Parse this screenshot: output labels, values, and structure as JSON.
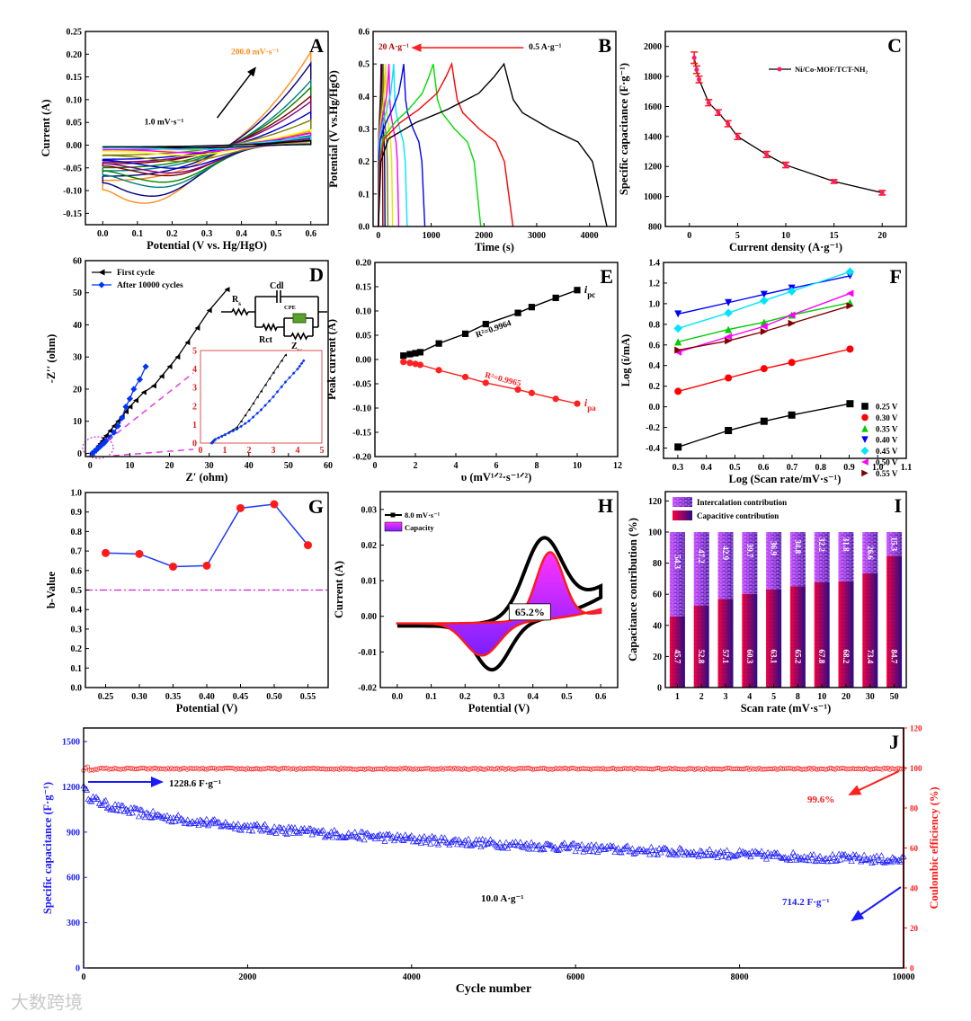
{
  "watermark": "大数跨境",
  "chart_data": [
    {
      "panel": "A",
      "letter": "A",
      "type": "line",
      "xlabel": "Potential (V vs. Hg/HgO)",
      "ylabel": "Current (A)",
      "xlim": [
        -0.05,
        0.65
      ],
      "ylim": [
        -0.175,
        0.25
      ],
      "x_ticks": [
        "0.0",
        "0.1",
        "0.2",
        "0.3",
        "0.4",
        "0.5",
        "0.6"
      ],
      "y_ticks": [
        "-0.15",
        "-0.10",
        "-0.05",
        "0.00",
        "0.05",
        "0.10",
        "0.15",
        "0.20",
        "0.25"
      ],
      "annotations": {
        "high": "200.0 mV·s⁻¹",
        "low": "1.0 mV·s⁻¹"
      },
      "series": [
        {
          "color": "#ff8c1a",
          "current_at_0_6V": 0.205,
          "cathodic_peak": -0.125,
          "cathodic_peak_potential": 0.15
        },
        {
          "color": "#000080",
          "current_at_0_6V": 0.18,
          "cathodic_peak": -0.11,
          "cathodic_peak_potential": 0.17
        },
        {
          "color": "#008080",
          "current_at_0_6V": 0.142,
          "cathodic_peak": -0.091,
          "cathodic_peak_potential": 0.19
        },
        {
          "color": "#008000",
          "current_at_0_6V": 0.127,
          "cathodic_peak": -0.08,
          "cathodic_peak_potential": 0.2
        },
        {
          "color": "#800000",
          "current_at_0_6V": 0.108,
          "cathodic_peak": -0.066,
          "cathodic_peak_potential": 0.21
        },
        {
          "color": "#800080",
          "current_at_0_6V": 0.096,
          "cathodic_peak": -0.06,
          "cathodic_peak_potential": 0.22
        },
        {
          "color": "#0000cc",
          "current_at_0_6V": 0.073,
          "cathodic_peak": -0.05,
          "cathodic_peak_potential": 0.23
        },
        {
          "color": "#808000",
          "current_at_0_6V": 0.055,
          "cathodic_peak": -0.035,
          "cathodic_peak_potential": 0.25
        },
        {
          "color": "#ffff00",
          "current_at_0_6V": 0.034,
          "cathodic_peak": -0.022,
          "cathodic_peak_potential": 0.26
        },
        {
          "color": "#ff00ff",
          "current_at_0_6V": 0.026,
          "cathodic_peak": -0.016,
          "cathodic_peak_potential": 0.27
        },
        {
          "color": "#00e5ff",
          "current_at_0_6V": 0.018,
          "cathodic_peak": -0.01,
          "cathodic_peak_potential": 0.28
        },
        {
          "color": "#000000",
          "current_at_0_6V": 0.01,
          "cathodic_peak": -0.006,
          "cathodic_peak_potential": 0.29
        }
      ]
    },
    {
      "panel": "B",
      "letter": "B",
      "type": "line",
      "xlabel": "Time (s)",
      "ylabel": "Potential (V vs.Hg/HgO)",
      "xlim": [
        -100,
        4500
      ],
      "ylim": [
        0,
        0.6
      ],
      "x_ticks": [
        "0",
        "1000",
        "2000",
        "3000",
        "4000"
      ],
      "y_ticks": [
        "0.0",
        "0.1",
        "0.2",
        "0.3",
        "0.4",
        "0.5",
        "0.6"
      ],
      "annotations": {
        "high": "20 A·g⁻¹",
        "low": "0.5 A·g⁻¹"
      },
      "series": [
        {
          "current_density": 0.5,
          "color": "#000000",
          "charge_end_s": 2380,
          "discharge_end_s": 4330
        },
        {
          "current_density": 1,
          "color": "#ff0000",
          "charge_end_s": 1390,
          "discharge_end_s": 2550
        },
        {
          "current_density": 2,
          "color": "#00dd00",
          "charge_end_s": 1040,
          "discharge_end_s": 1940
        },
        {
          "current_density": 3,
          "color": "#0000ff",
          "charge_end_s": 480,
          "discharge_end_s": 880
        },
        {
          "current_density": 4,
          "color": "#00e5ff",
          "charge_end_s": 290,
          "discharge_end_s": 545
        },
        {
          "current_density": 5,
          "color": "#ff00ff",
          "charge_end_s": 200,
          "discharge_end_s": 385
        },
        {
          "current_density": 8,
          "color": "#e6e600",
          "charge_end_s": 140,
          "discharge_end_s": 270
        },
        {
          "current_density": 10,
          "color": "#808000",
          "charge_end_s": 95,
          "discharge_end_s": 180
        },
        {
          "current_density": 15,
          "color": "#000080",
          "charge_end_s": 70,
          "discharge_end_s": 125
        },
        {
          "current_density": 20,
          "color": "#800000",
          "charge_end_s": 50,
          "discharge_end_s": 85
        }
      ]
    },
    {
      "panel": "C",
      "letter": "C",
      "type": "line",
      "xlabel": "Current density (A·g⁻¹)",
      "ylabel": "Specific capacitance (F·g⁻¹)",
      "xlim": [
        -2.5,
        22.5
      ],
      "ylim": [
        800,
        2100
      ],
      "x_ticks": [
        "0",
        "5",
        "10",
        "15",
        "20"
      ],
      "y_ticks": [
        "800",
        "1000",
        "1200",
        "1400",
        "1600",
        "1800",
        "2000"
      ],
      "legend": "Ni/Co-MOF/TCT-NH₂",
      "x": [
        0.5,
        0.75,
        1,
        2,
        3,
        4,
        5,
        8,
        10,
        15,
        20
      ],
      "y": [
        1925,
        1845,
        1780,
        1625,
        1560,
        1485,
        1400,
        1280,
        1210,
        1100,
        1025
      ],
      "error": [
        38,
        25,
        22,
        20,
        18,
        20,
        20,
        20,
        18,
        12,
        15
      ]
    },
    {
      "panel": "D",
      "letter": "D",
      "type": "line",
      "xlabel": "Z′ (ohm)",
      "ylabel": "-Z′′ (ohm)",
      "xlim": [
        -1.2,
        60
      ],
      "ylim": [
        -1,
        60
      ],
      "x_ticks": [
        "0",
        "10",
        "20",
        "30",
        "40",
        "50",
        "60"
      ],
      "y_ticks": [
        "0",
        "10",
        "20",
        "30",
        "40",
        "50",
        "60"
      ],
      "legend": [
        "First cycle",
        "After 10000 cycles"
      ],
      "circuit": {
        "Rs": "Rs",
        "Cdl": "Cdl",
        "CPE": "CPE",
        "Rct": "Rct",
        "Zw": "Zw"
      },
      "series": [
        {
          "name": "First cycle",
          "color": "#000000",
          "points": [
            [
              0.5,
              0
            ],
            [
              1,
              0.8
            ],
            [
              1.5,
              1.5
            ],
            [
              2,
              2.3
            ],
            [
              2.5,
              3
            ],
            [
              3,
              3.8
            ],
            [
              3.5,
              4.7
            ],
            [
              4,
              5.5
            ],
            [
              5,
              7
            ],
            [
              6,
              8.5
            ],
            [
              7,
              10
            ],
            [
              8,
              11.5
            ],
            [
              9,
              13
            ],
            [
              10,
              14.5
            ],
            [
              11.5,
              16.5
            ],
            [
              13.5,
              19
            ],
            [
              16,
              21
            ],
            [
              18,
              24
            ],
            [
              20,
              27
            ],
            [
              22,
              30
            ],
            [
              24.5,
              34.5
            ],
            [
              27,
              39
            ],
            [
              30,
              44.5
            ],
            [
              34.5,
              51
            ]
          ]
        },
        {
          "name": "After 10000 cycles",
          "color": "#0033ff",
          "points": [
            [
              0.5,
              0
            ],
            [
              1,
              0.5
            ],
            [
              1.5,
              1
            ],
            [
              2,
              1.6
            ],
            [
              2.5,
              2.1
            ],
            [
              3,
              2.7
            ],
            [
              3.5,
              3.2
            ],
            [
              4,
              3.9
            ],
            [
              5,
              5
            ],
            [
              6,
              6.5
            ],
            [
              7,
              8.5
            ],
            [
              8,
              11
            ],
            [
              9,
              14.5
            ],
            [
              10,
              17
            ],
            [
              11,
              20
            ],
            [
              12.5,
              23
            ],
            [
              14,
              27
            ]
          ]
        }
      ],
      "inset": {
        "xlim": [
          0,
          5
        ],
        "ylim": [
          0,
          5
        ],
        "x_ticks": [
          "0",
          "1",
          "2",
          "3",
          "4",
          "5"
        ],
        "y_ticks": [
          "0",
          "1",
          "2",
          "3",
          "4",
          "5"
        ],
        "series": [
          {
            "color": "#000000",
            "points": [
              [
                0.45,
                0
              ],
              [
                0.6,
                0.2
              ],
              [
                1,
                0.45
              ],
              [
                1.5,
                0.85
              ],
              [
                2,
                1.8
              ],
              [
                2.5,
                2.8
              ],
              [
                3,
                3.8
              ],
              [
                3.5,
                4.75
              ]
            ]
          },
          {
            "color": "#0033ff",
            "points": [
              [
                0.45,
                0
              ],
              [
                0.6,
                0.2
              ],
              [
                1,
                0.45
              ],
              [
                1.5,
                0.75
              ],
              [
                2,
                1.2
              ],
              [
                2.5,
                1.8
              ],
              [
                3,
                2.5
              ],
              [
                3.5,
                3.3
              ],
              [
                4,
                4
              ],
              [
                4.25,
                4.45
              ]
            ]
          }
        ]
      }
    },
    {
      "panel": "E",
      "letter": "E",
      "type": "scatter",
      "xlabel": "υ (mV¹ᐟ²·s⁻¹ᐟ²)",
      "ylabel": "Peak current (A)",
      "xlim": [
        0,
        12
      ],
      "ylim": [
        -0.2,
        0.2
      ],
      "x_ticks": [
        "0",
        "2",
        "4",
        "6",
        "8",
        "10",
        "12"
      ],
      "y_ticks": [
        "-0.20",
        "-0.15",
        "-0.10",
        "-0.05",
        "0.00",
        "0.05",
        "0.10",
        "0.15",
        "0.20"
      ],
      "x": [
        1.41,
        1.73,
        2.0,
        2.24,
        3.16,
        4.47,
        5.48,
        7.07,
        7.75,
        8.94,
        10.0
      ],
      "series": [
        {
          "name": "ipc",
          "label_main": "i",
          "label_sub": "pc",
          "color": "#000000",
          "r2": "R²=0.9964",
          "values": [
            0.008,
            0.011,
            0.013,
            0.015,
            0.033,
            0.053,
            0.073,
            0.096,
            0.108,
            0.127,
            0.143
          ]
        },
        {
          "name": "ipa",
          "label_main": "i",
          "label_sub": "pa",
          "color": "#ff2020",
          "r2": "R²=0.9965",
          "values": [
            -0.005,
            -0.007,
            -0.009,
            -0.011,
            -0.022,
            -0.036,
            -0.048,
            -0.062,
            -0.069,
            -0.081,
            -0.091
          ]
        }
      ]
    },
    {
      "panel": "F",
      "letter": "F",
      "type": "line",
      "xlabel": "Log (Scan rate/mV·s⁻¹)",
      "ylabel": "Log (i/mA)",
      "xlim": [
        0.25,
        1.1
      ],
      "ylim": [
        -0.5,
        1.4
      ],
      "x_ticks": [
        "0.3",
        "0.4",
        "0.5",
        "0.6",
        "0.7",
        "0.8",
        "0.9",
        "1.0",
        "1.1"
      ],
      "y_ticks": [
        "-0.4",
        "-0.2",
        "0.0",
        "0.2",
        "0.4",
        "0.6",
        "0.8",
        "1.0",
        "1.2",
        "1.4"
      ],
      "x": [
        0.301,
        0.477,
        0.602,
        0.699,
        0.903
      ],
      "series": [
        {
          "name": "0.25 V",
          "color": "#000000",
          "marker": "square",
          "values": [
            -0.39,
            -0.23,
            -0.14,
            -0.08,
            0.03
          ]
        },
        {
          "name": "0.30 V",
          "color": "#ff0000",
          "marker": "circle",
          "values": [
            0.15,
            0.28,
            0.37,
            0.43,
            0.56
          ]
        },
        {
          "name": "0.35 V",
          "color": "#00cc00",
          "marker": "tri-up",
          "values": [
            0.63,
            0.75,
            0.82,
            0.89,
            1.01
          ]
        },
        {
          "name": "0.40 V",
          "color": "#0000ff",
          "marker": "tri-down",
          "values": [
            0.9,
            1.01,
            1.09,
            1.15,
            1.27
          ]
        },
        {
          "name": "0.45 V",
          "color": "#00e5ff",
          "marker": "diamond",
          "values": [
            0.76,
            0.91,
            1.03,
            1.12,
            1.31
          ]
        },
        {
          "name": "0.50 V",
          "color": "#ff00ff",
          "marker": "tri-left",
          "values": [
            0.53,
            0.68,
            0.78,
            0.89,
            1.1
          ]
        },
        {
          "name": "0.55 V",
          "color": "#800000",
          "marker": "tri-right",
          "values": [
            0.55,
            0.64,
            0.73,
            0.81,
            0.98
          ]
        }
      ]
    },
    {
      "panel": "G",
      "letter": "G",
      "type": "line",
      "xlabel": "Potential (V)",
      "ylabel": "b-Value",
      "xlim": [
        0.22,
        0.58
      ],
      "ylim": [
        0,
        1.0
      ],
      "x_ticks": [
        "0.25",
        "0.30",
        "0.35",
        "0.40",
        "0.45",
        "0.50",
        "0.55"
      ],
      "y_ticks": [
        "0.0",
        "0.1",
        "0.2",
        "0.3",
        "0.4",
        "0.5",
        "0.6",
        "0.7",
        "0.8",
        "0.9",
        "1.0"
      ],
      "x": [
        0.25,
        0.3,
        0.35,
        0.4,
        0.45,
        0.5,
        0.55
      ],
      "y": [
        0.69,
        0.685,
        0.62,
        0.625,
        0.92,
        0.94,
        0.73
      ],
      "reference_line": 0.5
    },
    {
      "panel": "H",
      "letter": "H",
      "type": "area",
      "xlabel": "Potential (V)",
      "ylabel": "Current (A)",
      "xlim": [
        -0.05,
        0.65
      ],
      "ylim": [
        -0.02,
        0.035
      ],
      "x_ticks": [
        "0.0",
        "0.1",
        "0.2",
        "0.3",
        "0.4",
        "0.5",
        "0.6"
      ],
      "y_ticks": [
        "-0.02",
        "-0.01",
        "0.00",
        "0.01",
        "0.02",
        "0.03"
      ],
      "legend": [
        "8.0 mV·s⁻¹",
        "Capacity"
      ],
      "capacitive_percent_label": "65.2%",
      "total_cv": {
        "anodic_peak": [
          0.43,
          0.022
        ],
        "cathodic_peak": [
          0.28,
          -0.015
        ]
      },
      "capacitive_cv": {
        "anodic_peak": [
          0.45,
          0.018
        ],
        "cathodic_peak": [
          0.25,
          -0.011
        ]
      }
    },
    {
      "panel": "I",
      "letter": "I",
      "type": "bar",
      "xlabel": "Scan rate (mV·s⁻¹)",
      "ylabel": "Capacitance contribution (%)",
      "ylim": [
        0,
        126
      ],
      "y_ticks": [
        "0",
        "20",
        "40",
        "60",
        "80",
        "100",
        "120"
      ],
      "categories": [
        "1",
        "2",
        "3",
        "4",
        "5",
        "8",
        "10",
        "20",
        "30",
        "50"
      ],
      "legend": [
        "Intercalation contribution",
        "Capacitive contribution"
      ],
      "series": [
        {
          "name": "Capacitive contribution",
          "values": [
            45.7,
            52.8,
            57.1,
            60.3,
            63.1,
            65.2,
            67.8,
            68.2,
            73.4,
            84.7
          ],
          "labels": [
            "45.7",
            "52.8",
            "57.1",
            "60.3",
            "63.1",
            "65.2",
            "67.8",
            "68.2",
            "73.4",
            "84.7"
          ]
        },
        {
          "name": "Intercalation contribution",
          "values": [
            54.3,
            47.2,
            42.9,
            39.7,
            36.9,
            34.8,
            32.2,
            31.8,
            26.6,
            15.3
          ],
          "labels": [
            "54.3",
            "47.2",
            "42.9",
            "39.7",
            "36.9",
            "34.8",
            "32.2",
            "31.8",
            "26.6",
            "15.3"
          ]
        }
      ]
    },
    {
      "panel": "J",
      "letter": "J",
      "type": "scatter",
      "xlabel": "Cycle number",
      "ylabel": "Specific capacitance (F·g⁻¹)",
      "y2label": "Coulombic efficiency (%)",
      "xlim": [
        0,
        10000
      ],
      "ylim": [
        0,
        1590
      ],
      "y2lim": [
        0,
        120
      ],
      "x_ticks": [
        "0",
        "2000",
        "4000",
        "6000",
        "8000",
        "10000"
      ],
      "y_ticks": [
        "0",
        "300",
        "600",
        "900",
        "1200",
        "1500"
      ],
      "y2_ticks": [
        "0",
        "20",
        "40",
        "60",
        "80",
        "100",
        "120"
      ],
      "capacitance_start": 1228.6,
      "capacitance_end": 714.2,
      "coulombic_efficiency": 99.6,
      "labels": {
        "start": "1228.6 F·g⁻¹",
        "end": "714.2 F·g⁻¹",
        "efficiency": "99.6%",
        "current": "10.0 A·g⁻¹"
      },
      "colors": {
        "capacitance": "#1a1aff",
        "efficiency": "#ff1a1a"
      }
    }
  ]
}
